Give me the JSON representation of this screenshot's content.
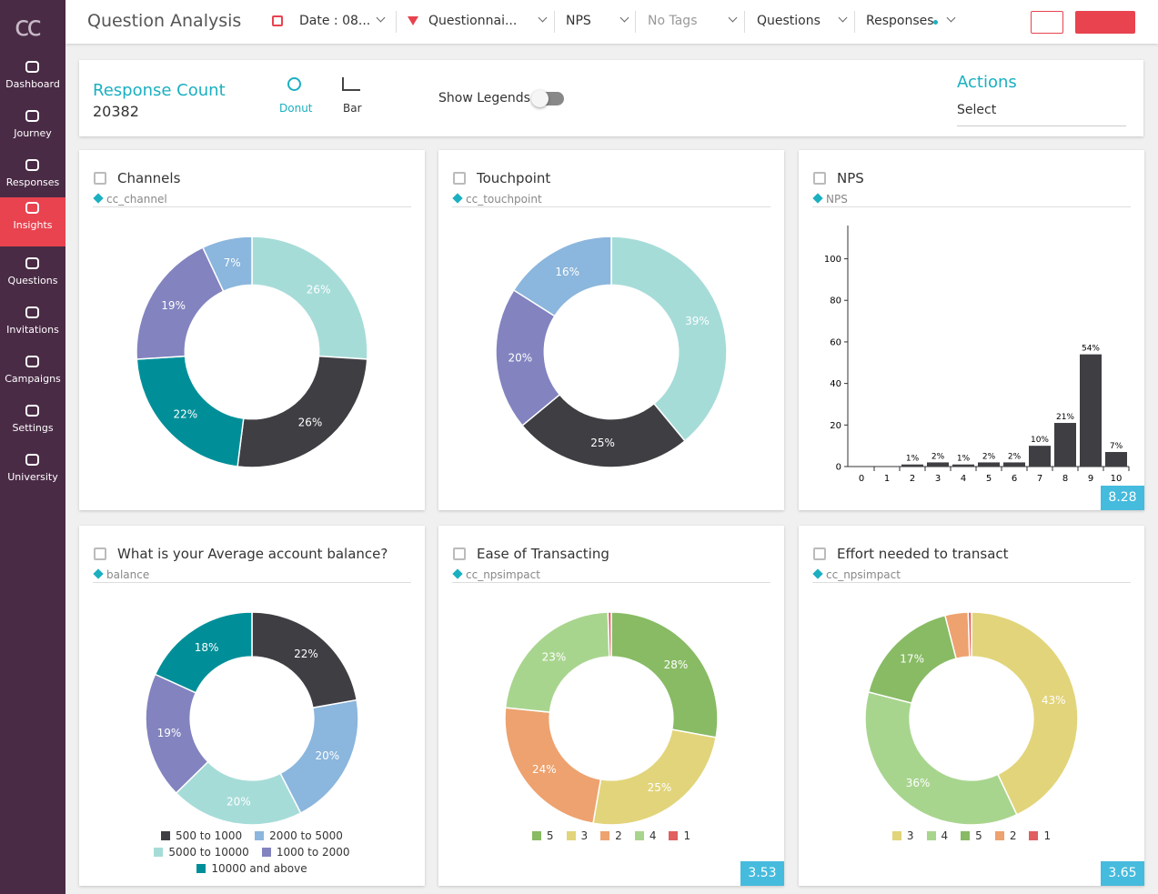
{
  "sidebar": {
    "logo": "cc",
    "items": [
      "Dashboard",
      "Journey",
      "Responses",
      "Insights",
      "Questions",
      "Invitations",
      "Campaigns",
      "Settings",
      "University"
    ],
    "active": 3
  },
  "header": {
    "title": "Question Analysis",
    "filters": [
      "Date : 08...",
      "Questionnai...",
      "NPS",
      "No Tags",
      "Questions",
      "Responses"
    ]
  },
  "summary": {
    "response_count_label": "Response Count",
    "response_count": 20382,
    "views": [
      "Donut",
      "Bar"
    ],
    "show_legends": "Show Legends",
    "actions": "Actions",
    "select": "Select"
  },
  "chart_data": [
    {
      "type": "donut",
      "title": "Channels",
      "tag": "cc_channel",
      "values": [
        26,
        26,
        22,
        19,
        7
      ],
      "value_labels": [
        "26%",
        "26%",
        "22%",
        "19%",
        "7%"
      ],
      "colors": [
        "#a6dcd8",
        "#3f3e43",
        "#008f99",
        "#8283bf",
        "#8bb6dd"
      ]
    },
    {
      "type": "donut",
      "title": "Touchpoint",
      "tag": "cc_touchpoint",
      "values": [
        39,
        25,
        20,
        16
      ],
      "value_labels": [
        "39%",
        "25%",
        "20%",
        "16%"
      ],
      "colors": [
        "#a6dcd8",
        "#3f3e43",
        "#8283bf",
        "#8bb6dd"
      ]
    },
    {
      "type": "bar",
      "title": "NPS",
      "tag": "NPS",
      "categories": [
        "0",
        "1",
        "2",
        "3",
        "4",
        "5",
        "6",
        "7",
        "8",
        "9",
        "10"
      ],
      "values": [
        0,
        0,
        1,
        2,
        1,
        2,
        2,
        10,
        21,
        54,
        7
      ],
      "value_labels": [
        null,
        null,
        "1%",
        "2%",
        "1%",
        "2%",
        "2%",
        "10%",
        "21%",
        "54%",
        "7%"
      ],
      "color": "#3f3e43",
      "ylim": [
        0,
        116
      ],
      "yticks": [
        0,
        20,
        40,
        60,
        80,
        100
      ],
      "score": 8.28
    },
    {
      "type": "donut",
      "title": "What is your Average account balance?",
      "tag": "balance",
      "categories": [
        "500 to 1000",
        "2000 to 5000",
        "5000 to 10000",
        "1000 to 2000",
        "10000 and above"
      ],
      "values": [
        22,
        20,
        20,
        19,
        18
      ],
      "value_labels": [
        "22%",
        "20%",
        "20%",
        "19%",
        "18%"
      ],
      "colors": [
        "#3f3e43",
        "#8bb6dd",
        "#a6dcd8",
        "#8283bf",
        "#008f99"
      ],
      "legend": true
    },
    {
      "type": "donut",
      "title": "Ease of Transacting",
      "tag": "cc_npsimpact",
      "categories": [
        "5",
        "3",
        "2",
        "4",
        "1"
      ],
      "values": [
        28,
        25,
        24,
        23,
        0.5
      ],
      "value_labels": [
        "28%",
        "25%",
        "24%",
        "23%",
        null
      ],
      "colors": [
        "#88bb64",
        "#e2d47a",
        "#eda26f",
        "#a8d58e",
        "#e06060"
      ],
      "legend": true,
      "score": 3.53
    },
    {
      "type": "donut",
      "title": "Effort needed to transact",
      "tag": "cc_npsimpact",
      "categories": [
        "3",
        "4",
        "5",
        "2",
        "1"
      ],
      "values": [
        43,
        36,
        17,
        3.5,
        0.5
      ],
      "value_labels": [
        "43%",
        "36%",
        "17%",
        null,
        null
      ],
      "colors": [
        "#e2d47a",
        "#a8d58e",
        "#88bb64",
        "#eda26f",
        "#e06060"
      ],
      "legend": true,
      "score": 3.65
    }
  ]
}
